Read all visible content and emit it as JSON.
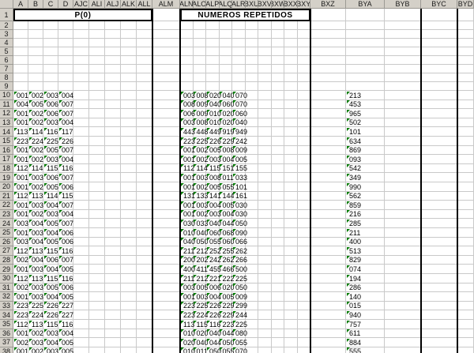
{
  "merged_headers": {
    "left": "P(0)",
    "middle": "NUMEROS REPETIDOS"
  },
  "column_headers": [
    "A",
    "B",
    "C",
    "D",
    "AJC",
    "ALI",
    "ALJ",
    "ALK",
    "ALL",
    "ALM",
    "ALN",
    "ALO",
    "ALP",
    "ALQ",
    "ALR",
    "BXU",
    "BXV",
    "BXW",
    "BXX",
    "BXY",
    "BXZ",
    "BYA",
    "BYB",
    "BYC",
    "BYD"
  ],
  "row_numbers": [
    1,
    2,
    3,
    4,
    5,
    6,
    7,
    8,
    9,
    10,
    11,
    12,
    13,
    14,
    15,
    16,
    17,
    18,
    19,
    20,
    21,
    22,
    23,
    24,
    25,
    26,
    27,
    28,
    29,
    30,
    31,
    32,
    33,
    34,
    35,
    36,
    37,
    38
  ],
  "colors": {
    "indicator_green": "#007a00",
    "header_bg": "#d4d0c8",
    "gridline": "#c9c9c9",
    "block_border": "#000000"
  },
  "rows": [
    {
      "n": 10,
      "abcd": [
        "001",
        "002",
        "003",
        "004"
      ],
      "mid": [
        "003",
        "008",
        "020",
        "040",
        "070"
      ],
      "bya": "213"
    },
    {
      "n": 11,
      "abcd": [
        "004",
        "005",
        "006",
        "007"
      ],
      "mid": [
        "008",
        "009",
        "040",
        "060",
        "070"
      ],
      "bya": "453"
    },
    {
      "n": 12,
      "abcd": [
        "001",
        "002",
        "006",
        "007"
      ],
      "mid": [
        "006",
        "009",
        "010",
        "020",
        "060"
      ],
      "bya": "965"
    },
    {
      "n": 13,
      "abcd": [
        "001",
        "002",
        "003",
        "004"
      ],
      "mid": [
        "003",
        "008",
        "010",
        "020",
        "040"
      ],
      "bya": "502"
    },
    {
      "n": 14,
      "abcd": [
        "113",
        "114",
        "116",
        "117"
      ],
      "mid": [
        "443",
        "448",
        "449",
        "919",
        "949"
      ],
      "bya": "101"
    },
    {
      "n": 15,
      "abcd": [
        "223",
        "224",
        "225",
        "226"
      ],
      "mid": [
        "223",
        "225",
        "226",
        "229",
        "242"
      ],
      "bya": "634"
    },
    {
      "n": 16,
      "abcd": [
        "001",
        "002",
        "005",
        "007"
      ],
      "mid": [
        "001",
        "002",
        "005",
        "008",
        "009"
      ],
      "bya": "869"
    },
    {
      "n": 17,
      "abcd": [
        "001",
        "002",
        "003",
        "004"
      ],
      "mid": [
        "001",
        "002",
        "003",
        "004",
        "005"
      ],
      "bya": "093"
    },
    {
      "n": 18,
      "abcd": [
        "112",
        "114",
        "115",
        "116"
      ],
      "mid": [
        "112",
        "114",
        "115",
        "151",
        "155"
      ],
      "bya": "542"
    },
    {
      "n": 19,
      "abcd": [
        "001",
        "003",
        "006",
        "007"
      ],
      "mid": [
        "001",
        "003",
        "008",
        "011",
        "033"
      ],
      "bya": "349"
    },
    {
      "n": 20,
      "abcd": [
        "001",
        "002",
        "005",
        "006"
      ],
      "mid": [
        "001",
        "002",
        "005",
        "055",
        "101"
      ],
      "bya": "990"
    },
    {
      "n": 21,
      "abcd": [
        "112",
        "113",
        "114",
        "115"
      ],
      "mid": [
        "131",
        "133",
        "141",
        "144",
        "161"
      ],
      "bya": "562"
    },
    {
      "n": 22,
      "abcd": [
        "001",
        "003",
        "004",
        "007"
      ],
      "mid": [
        "001",
        "003",
        "004",
        "005",
        "030"
      ],
      "bya": "859"
    },
    {
      "n": 23,
      "abcd": [
        "001",
        "002",
        "003",
        "004"
      ],
      "mid": [
        "001",
        "002",
        "003",
        "004",
        "030"
      ],
      "bya": "216"
    },
    {
      "n": 24,
      "abcd": [
        "003",
        "004",
        "005",
        "007"
      ],
      "mid": [
        "030",
        "033",
        "040",
        "044",
        "050"
      ],
      "bya": "285"
    },
    {
      "n": 25,
      "abcd": [
        "001",
        "003",
        "004",
        "006"
      ],
      "mid": [
        "010",
        "040",
        "060",
        "068",
        "090"
      ],
      "bya": "211"
    },
    {
      "n": 26,
      "abcd": [
        "003",
        "004",
        "005",
        "006"
      ],
      "mid": [
        "040",
        "050",
        "055",
        "060",
        "066"
      ],
      "bya": "400"
    },
    {
      "n": 27,
      "abcd": [
        "112",
        "113",
        "115",
        "116"
      ],
      "mid": [
        "211",
        "212",
        "252",
        "255",
        "262"
      ],
      "bya": "513"
    },
    {
      "n": 28,
      "abcd": [
        "002",
        "004",
        "006",
        "007"
      ],
      "mid": [
        "200",
        "202",
        "242",
        "262",
        "266"
      ],
      "bya": "829"
    },
    {
      "n": 29,
      "abcd": [
        "001",
        "003",
        "004",
        "005"
      ],
      "mid": [
        "400",
        "411",
        "455",
        "466",
        "500"
      ],
      "bya": "074"
    },
    {
      "n": 30,
      "abcd": [
        "112",
        "113",
        "115",
        "116"
      ],
      "mid": [
        "211",
        "212",
        "221",
        "222",
        "225"
      ],
      "bya": "194"
    },
    {
      "n": 31,
      "abcd": [
        "002",
        "003",
        "005",
        "006"
      ],
      "mid": [
        "003",
        "005",
        "006",
        "020",
        "050"
      ],
      "bya": "286"
    },
    {
      "n": 32,
      "abcd": [
        "001",
        "003",
        "004",
        "005"
      ],
      "mid": [
        "001",
        "003",
        "004",
        "005",
        "009"
      ],
      "bya": "140"
    },
    {
      "n": 33,
      "abcd": [
        "223",
        "225",
        "226",
        "227"
      ],
      "mid": [
        "223",
        "225",
        "226",
        "229",
        "299"
      ],
      "bya": "015"
    },
    {
      "n": 34,
      "abcd": [
        "223",
        "224",
        "226",
        "227"
      ],
      "mid": [
        "223",
        "224",
        "226",
        "229",
        "244"
      ],
      "bya": "940"
    },
    {
      "n": 35,
      "abcd": [
        "112",
        "113",
        "115",
        "116"
      ],
      "mid": [
        "113",
        "115",
        "116",
        "223",
        "225"
      ],
      "bya": "757"
    },
    {
      "n": 36,
      "abcd": [
        "001",
        "002",
        "003",
        "004"
      ],
      "mid": [
        "010",
        "020",
        "040",
        "044",
        "080"
      ],
      "bya": "611"
    },
    {
      "n": 37,
      "abcd": [
        "002",
        "003",
        "004",
        "005"
      ],
      "mid": [
        "020",
        "040",
        "044",
        "050",
        "055"
      ],
      "bya": "884"
    },
    {
      "n": 38,
      "abcd": [
        "001",
        "002",
        "003",
        "005"
      ],
      "mid": [
        "010",
        "011",
        "050",
        "055",
        "070"
      ],
      "bya": "555"
    }
  ]
}
